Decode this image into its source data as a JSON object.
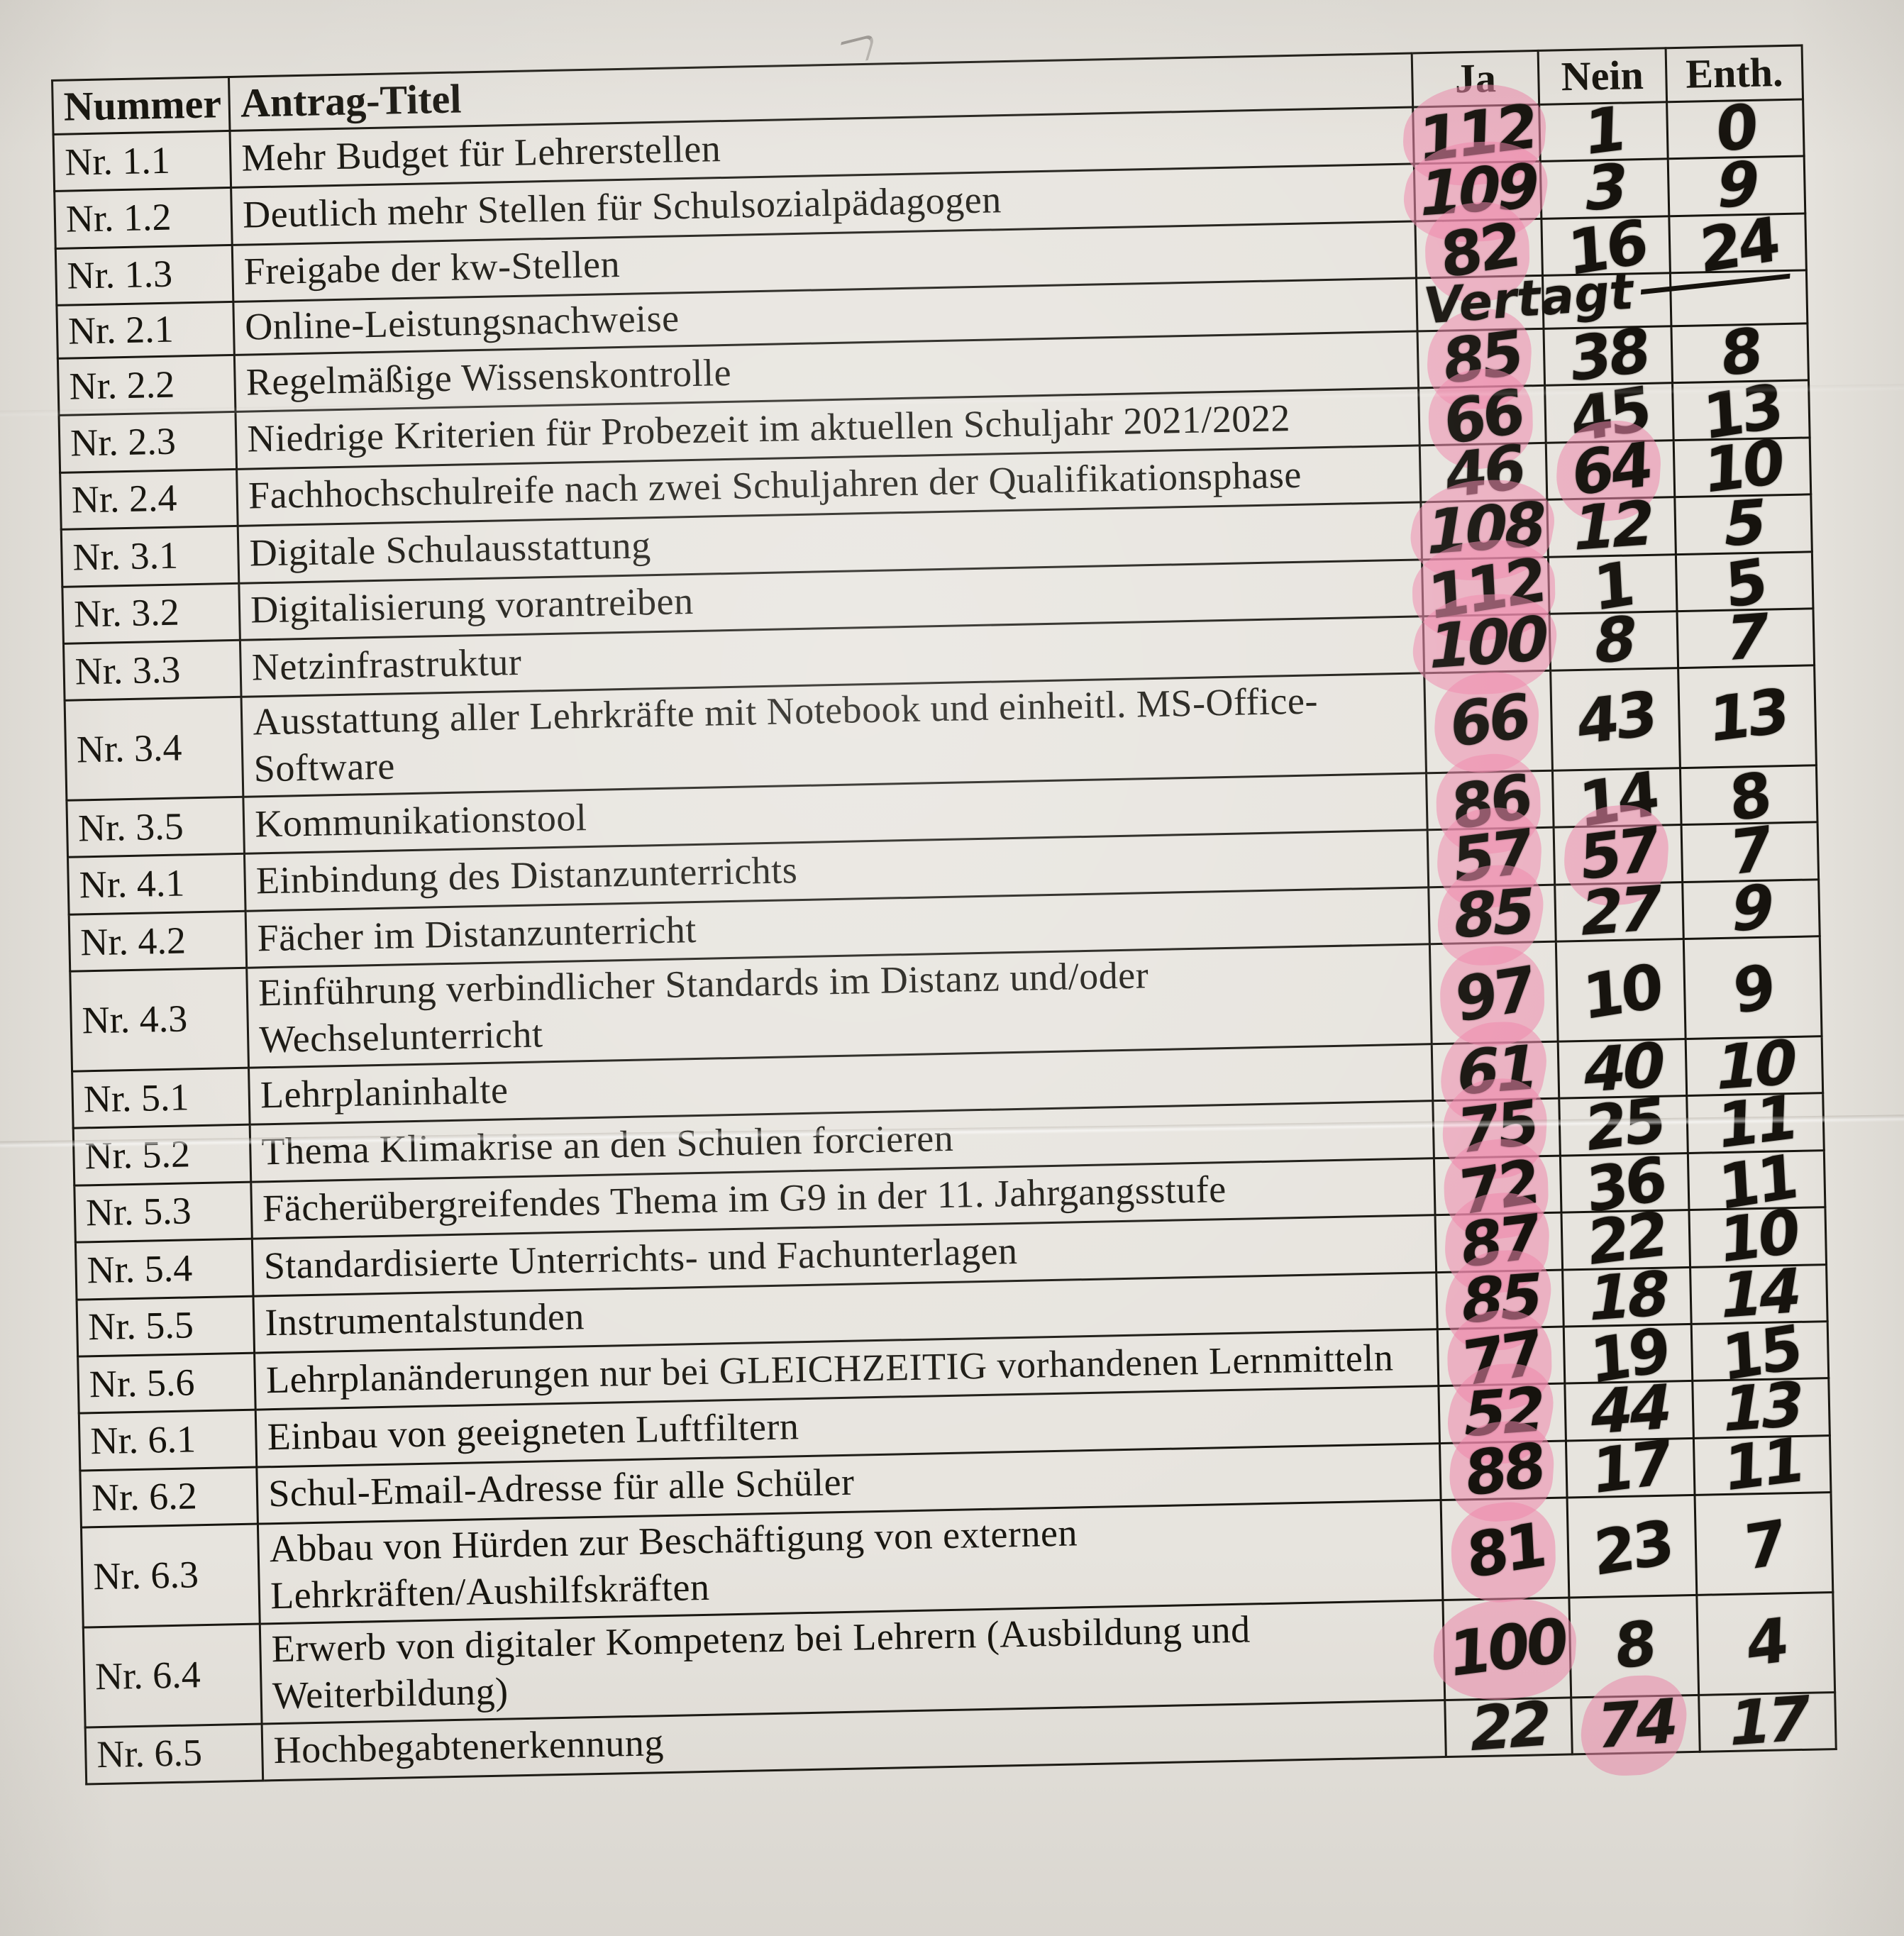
{
  "page": {
    "paper_color": "#e7e4de",
    "ink_color": "#16130e",
    "highlight_color": "#ee86ab"
  },
  "table": {
    "headers": {
      "nummer": "Nummer",
      "titel": "Antrag-Titel",
      "ja": "Ja",
      "nein": "Nein",
      "enth": "Enth."
    },
    "rows": [
      {
        "nummer": "Nr. 1.1",
        "titel": "Mehr Budget für Lehrerstellen",
        "ja": "112",
        "nein": "1",
        "enth": "0",
        "highlight": [
          "ja"
        ]
      },
      {
        "nummer": "Nr. 1.2",
        "titel": "Deutlich mehr Stellen für Schulsozialpädagogen",
        "ja": "109",
        "nein": "3",
        "enth": "9",
        "highlight": [
          "ja"
        ]
      },
      {
        "nummer": "Nr. 1.3",
        "titel": "Freigabe der kw-Stellen",
        "ja": "82",
        "nein": "16",
        "enth": "24",
        "highlight": [
          "ja"
        ]
      },
      {
        "nummer": "Nr. 2.1",
        "titel": "Online-Leistungsnachweise",
        "ja": "",
        "nein": "",
        "enth": "",
        "note": "Vertagt",
        "highlight": []
      },
      {
        "nummer": "Nr. 2.2",
        "titel": "Regelmäßige Wissenskontrolle",
        "ja": "85",
        "nein": "38",
        "enth": "8",
        "highlight": [
          "ja"
        ]
      },
      {
        "nummer": "Nr. 2.3",
        "titel": "Niedrige Kriterien für Probezeit im aktuellen Schuljahr 2021/2022",
        "ja": "66",
        "nein": "45",
        "enth": "13",
        "highlight": [
          "ja"
        ]
      },
      {
        "nummer": "Nr. 2.4",
        "titel": "Fachhochschulreife nach zwei Schuljahren der Qualifikationsphase",
        "ja": "46",
        "nein": "64",
        "enth": "10",
        "highlight": [
          "nein"
        ]
      },
      {
        "nummer": "Nr. 3.1",
        "titel": "Digitale Schulausstattung",
        "ja": "108",
        "nein": "12",
        "enth": "5",
        "highlight": [
          "ja"
        ]
      },
      {
        "nummer": "Nr. 3.2",
        "titel": "Digitalisierung vorantreiben",
        "ja": "112",
        "nein": "1",
        "enth": "5",
        "highlight": [
          "ja"
        ]
      },
      {
        "nummer": "Nr. 3.3",
        "titel": "Netzinfrastruktur",
        "ja": "100",
        "nein": "8",
        "enth": "7",
        "highlight": [
          "ja"
        ]
      },
      {
        "nummer": "Nr. 3.4",
        "titel": "Ausstattung aller Lehrkräfte mit Notebook und einheitl. MS-Office-Software",
        "ja": "66",
        "nein": "43",
        "enth": "13",
        "highlight": [
          "ja"
        ]
      },
      {
        "nummer": "Nr. 3.5",
        "titel": "Kommunikationstool",
        "ja": "86",
        "nein": "14",
        "enth": "8",
        "highlight": [
          "ja"
        ]
      },
      {
        "nummer": "Nr. 4.1",
        "titel": "Einbindung des Distanzunterrichts",
        "ja": "57",
        "nein": "57",
        "enth": "7",
        "highlight": [
          "ja",
          "nein"
        ]
      },
      {
        "nummer": "Nr. 4.2",
        "titel": "Fächer im Distanzunterricht",
        "ja": "85",
        "nein": "27",
        "enth": "9",
        "highlight": [
          "ja"
        ]
      },
      {
        "nummer": "Nr. 4.3",
        "titel": "Einführung verbindlicher Standards im Distanz und/oder Wechselunterricht",
        "ja": "97",
        "nein": "10",
        "enth": "9",
        "highlight": [
          "ja"
        ]
      },
      {
        "nummer": "Nr. 5.1",
        "titel": "Lehrplaninhalte",
        "ja": "61",
        "nein": "40",
        "enth": "10",
        "highlight": [
          "ja"
        ]
      },
      {
        "nummer": "Nr. 5.2",
        "titel": "Thema Klimakrise an den Schulen forcieren",
        "ja": "75",
        "nein": "25",
        "enth": "11",
        "highlight": [
          "ja"
        ]
      },
      {
        "nummer": "Nr. 5.3",
        "titel": "Fächerübergreifendes Thema im G9 in der 11. Jahrgangsstufe",
        "ja": "72",
        "nein": "36",
        "enth": "11",
        "highlight": [
          "ja"
        ]
      },
      {
        "nummer": "Nr. 5.4",
        "titel": "Standardisierte Unterrichts- und Fachunterlagen",
        "ja": "87",
        "nein": "22",
        "enth": "10",
        "highlight": [
          "ja"
        ]
      },
      {
        "nummer": "Nr. 5.5",
        "titel": "Instrumentalstunden",
        "ja": "85",
        "nein": "18",
        "enth": "14",
        "highlight": [
          "ja"
        ]
      },
      {
        "nummer": "Nr. 5.6",
        "titel": "Lehrplanänderungen nur bei GLEICHZEITIG vorhandenen Lernmitteln",
        "ja": "77",
        "nein": "19",
        "enth": "15",
        "highlight": [
          "ja"
        ]
      },
      {
        "nummer": "Nr. 6.1",
        "titel": "Einbau von geeigneten Luftfiltern",
        "ja": "52",
        "nein": "44",
        "enth": "13",
        "highlight": [
          "ja"
        ]
      },
      {
        "nummer": "Nr. 6.2",
        "titel": "Schul-Email-Adresse für alle Schüler",
        "ja": "88",
        "nein": "17",
        "enth": "11",
        "highlight": [
          "ja"
        ]
      },
      {
        "nummer": "Nr. 6.3",
        "titel": "Abbau von Hürden zur Beschäftigung von externen Lehrkräften/Aushilfskräften",
        "ja": "81",
        "nein": "23",
        "enth": "7",
        "highlight": [
          "ja"
        ]
      },
      {
        "nummer": "Nr. 6.4",
        "titel": "Erwerb von digitaler Kompetenz bei Lehrern (Ausbildung und Weiterbildung)",
        "ja": "100",
        "nein": "8",
        "enth": "4",
        "highlight": [
          "ja"
        ]
      },
      {
        "nummer": "Nr. 6.5",
        "titel": "Hochbegabtenerkennung",
        "ja": "22",
        "nein": "74",
        "enth": "17",
        "highlight": [
          "nein"
        ]
      }
    ]
  }
}
